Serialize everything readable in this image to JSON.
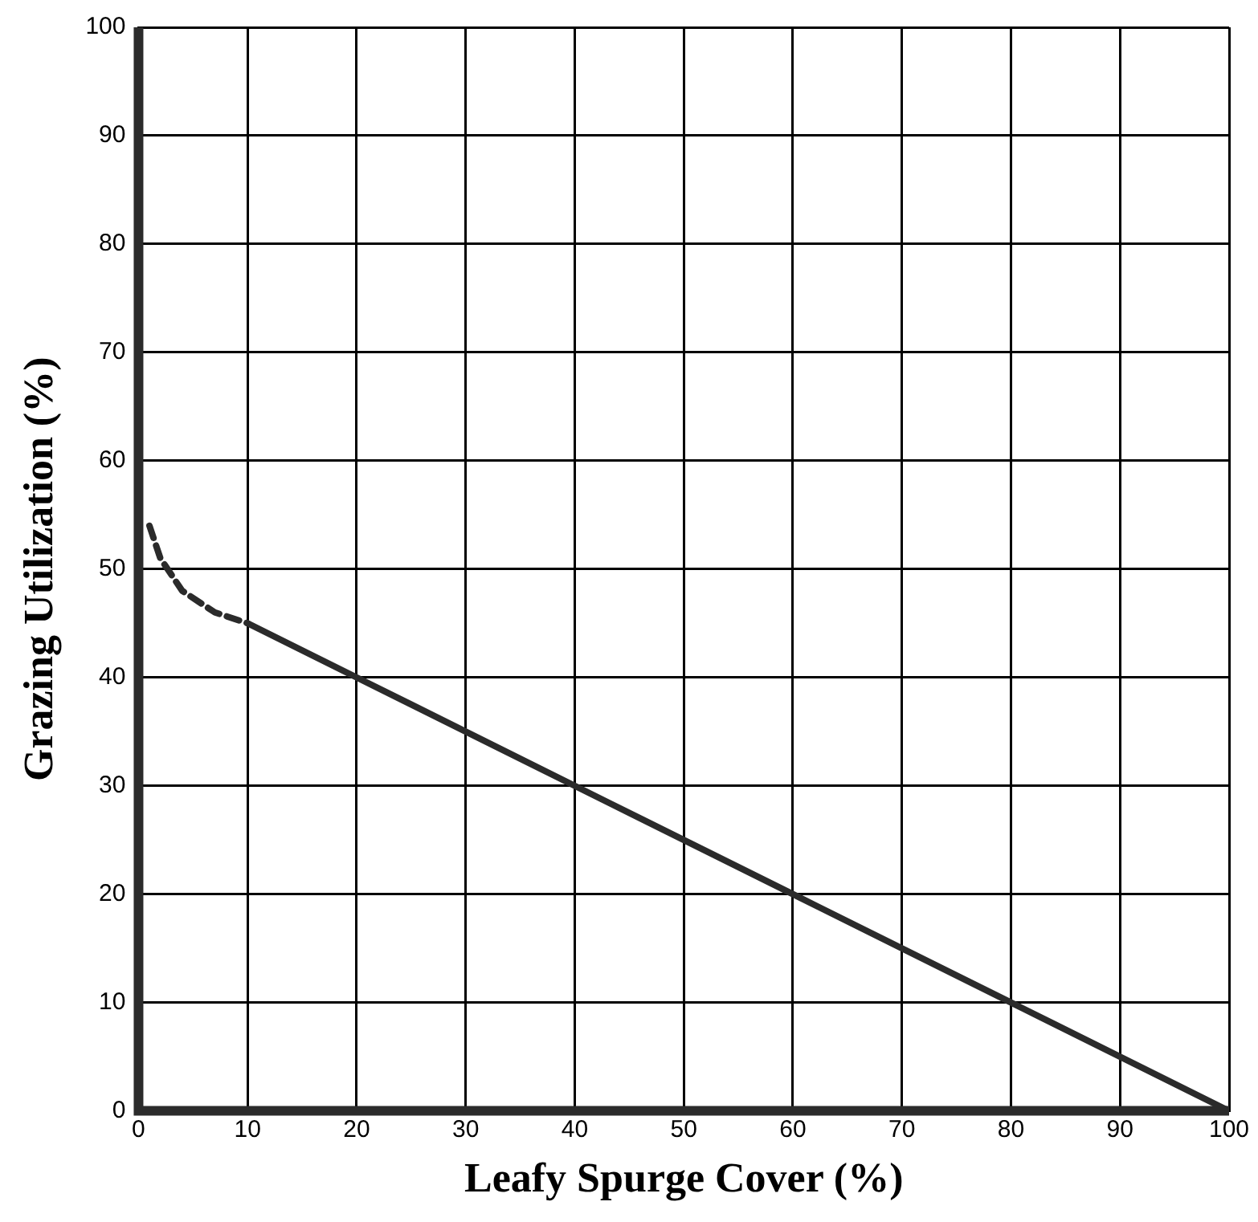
{
  "chart_data": {
    "type": "line",
    "xlabel": "Leafy Spurge Cover (%)",
    "ylabel": "Grazing Utilization (%)",
    "xlim": [
      0,
      100
    ],
    "xticks": [
      0,
      10,
      20,
      30,
      40,
      50,
      60,
      70,
      80,
      90,
      100
    ],
    "ylim": [
      0,
      100
    ],
    "yticks": [
      0,
      10,
      20,
      30,
      40,
      50,
      60,
      70,
      80,
      90,
      100
    ],
    "grid": true,
    "legend": false,
    "marker": "none",
    "series": [
      {
        "color": "#2b2b2b",
        "line_style": "dashed",
        "x": [
          1,
          2,
          4,
          7,
          10
        ],
        "values": [
          54,
          51,
          48,
          46,
          45
        ]
      },
      {
        "color": "#2b2b2b",
        "line_style": "solid",
        "x": [
          10,
          20,
          60,
          80,
          100
        ],
        "values": [
          45,
          40,
          20,
          10,
          0
        ]
      }
    ]
  }
}
